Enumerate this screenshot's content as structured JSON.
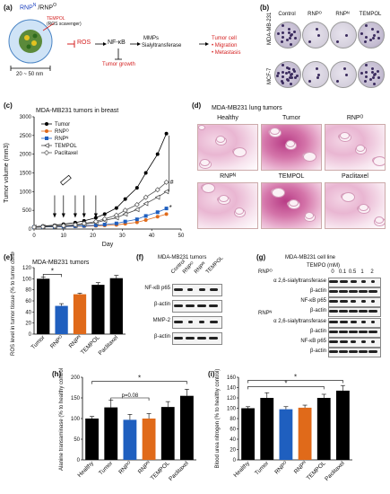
{
  "panels": {
    "a": "(a)",
    "b": "(b)",
    "c": "(c)",
    "d": "(d)",
    "e": "(e)",
    "f": "(f)",
    "g": "(g)",
    "h": "(h)",
    "i": "(i)"
  },
  "a": {
    "title_main": "RNP",
    "title_sup1": "N",
    "title_sep": " /RNP",
    "title_sup2": "O",
    "tempo": "TEMPOL",
    "tempo_note": "(ROS scavenger)",
    "size": "20 ~ 50 nm",
    "ros": "ROS",
    "nfkb": "NF-κB",
    "mmps": "MMPs",
    "sialyl": "Sialyltransferase",
    "tumor_cell": "Tumor cell",
    "migration": "• Migration",
    "metastasis": "• Metastasis",
    "tumor_growth": "Tumor growth"
  },
  "b": {
    "cols": [
      "Control",
      "RNPᴼ",
      "RNPᴺ",
      "TEMPOL"
    ],
    "rows": [
      "MDA-MB-231",
      "MCF-7"
    ]
  },
  "c": {
    "title": "MDA-MB231 tumors in breast",
    "legend": [
      "Tumor",
      "RNPᴼ",
      "RNPᴺ",
      "TEMPOL",
      "Paclitaxel"
    ],
    "star": "*",
    "hash": "#"
  },
  "d": {
    "title": "MDA-MB231 lung tumors",
    "labels": [
      "Healthy",
      "Tumor",
      "RNPᴼ",
      "RNPᴺ",
      "TEMPOL",
      "Paclitaxel"
    ]
  },
  "e": {
    "title": "MDA-MB231 tumors",
    "star": "*"
  },
  "f": {
    "title": "MDA-MB231 tumors",
    "cols": [
      "Control",
      "RNPᴼ",
      "RNPᴺ",
      "TEMPOL"
    ],
    "rows": [
      "NF-κB p65",
      "β-actin",
      "MMP-2",
      "β-actin"
    ]
  },
  "g": {
    "title": "MDA-MB231 cell line",
    "tempo_label": "TEMPO (mM)",
    "conc": [
      "0",
      "0.1",
      "0.5",
      "1",
      "2"
    ],
    "rnpo": "RNPᴼ",
    "rnpn": "RNPᴺ",
    "rows1": [
      "α 2,6-sialyltransferase",
      "β-actin",
      "NF-κB p65",
      "β-actin"
    ],
    "rows2": [
      "α 2,6-sialyltransferase",
      "β-actin",
      "NF-κB p65",
      "β-actin"
    ]
  },
  "h": {
    "star": "*",
    "p": "p=0.08"
  },
  "i": {
    "star1": "*",
    "star2": "*"
  },
  "chart_data": [
    {
      "type": "line",
      "panel": "c",
      "title": "MDA-MB231 tumors in breast",
      "xlabel": "Day",
      "ylabel": "Tumor volume (mm3)",
      "xlim": [
        0,
        50
      ],
      "ylim": [
        0,
        3000
      ],
      "xticks": [
        0,
        10,
        20,
        30,
        40,
        50
      ],
      "yticks": [
        0,
        500,
        1000,
        1500,
        2000,
        2500,
        3000
      ],
      "grid": false,
      "legend_position": "top-left",
      "x": [
        0,
        3,
        7,
        10,
        14,
        17,
        21,
        24,
        28,
        31,
        35,
        38,
        42,
        45
      ],
      "series": [
        {
          "name": "Tumor",
          "color": "#000000",
          "marker": "circle-filled",
          "values": [
            60,
            80,
            100,
            130,
            170,
            220,
            300,
            400,
            560,
            800,
            1100,
            1500,
            2000,
            2550
          ]
        },
        {
          "name": "RNPᴼ",
          "color": "#e06a1a",
          "marker": "circle-filled",
          "values": [
            50,
            55,
            60,
            65,
            70,
            75,
            85,
            95,
            110,
            140,
            180,
            240,
            330,
            400
          ]
        },
        {
          "name": "RNPᴺ",
          "color": "#1f5fbf",
          "marker": "square-filled",
          "values": [
            50,
            55,
            60,
            65,
            75,
            85,
            100,
            120,
            150,
            200,
            260,
            350,
            450,
            550
          ]
        },
        {
          "name": "TEMPOL",
          "color": "#444444",
          "marker": "triangle-open",
          "values": [
            50,
            60,
            70,
            80,
            100,
            130,
            170,
            230,
            300,
            400,
            520,
            680,
            850,
            1000
          ]
        },
        {
          "name": "Paclitaxel",
          "color": "#555555",
          "marker": "diamond-open",
          "values": [
            50,
            60,
            75,
            90,
            115,
            150,
            200,
            270,
            370,
            500,
            650,
            850,
            1050,
            1250
          ]
        }
      ],
      "injection_days": [
        7,
        10,
        14,
        17,
        21
      ]
    },
    {
      "type": "bar",
      "panel": "e",
      "title": "MDA-MB231 tumors",
      "ylabel": "ROS level in tumor tissue (% to tumor control)",
      "ylim": [
        0,
        120
      ],
      "yticks": [
        0,
        20,
        40,
        60,
        80,
        100,
        120
      ],
      "categories": [
        "Tumor",
        "RNPᴼ",
        "RNPᴺ",
        "TEMPOL",
        "Paclitaxel"
      ],
      "values": [
        100,
        51,
        72,
        89,
        101
      ],
      "errors": [
        3,
        4,
        2,
        4,
        5
      ],
      "colors": [
        "#000000",
        "#1f5fbf",
        "#e06a1a",
        "#000000",
        "#000000"
      ]
    },
    {
      "type": "bar",
      "panel": "h",
      "ylabel": "Alanine transaminase (% to healthy control)",
      "ylim": [
        0,
        200
      ],
      "yticks": [
        0,
        50,
        100,
        150,
        200
      ],
      "categories": [
        "Healthy",
        "Tumor",
        "RNPᴼ",
        "RNPᴺ",
        "TEMPOL",
        "Paclitaxel"
      ],
      "values": [
        100,
        127,
        97,
        100,
        128,
        155
      ],
      "errors": [
        5,
        17,
        13,
        12,
        13,
        16
      ],
      "colors": [
        "#000000",
        "#000000",
        "#1f5fbf",
        "#e06a1a",
        "#000000",
        "#000000"
      ]
    },
    {
      "type": "bar",
      "panel": "i",
      "ylabel": "Blood urea nitrogen (% to healthy control)",
      "ylim": [
        0,
        160
      ],
      "yticks": [
        0,
        20,
        40,
        60,
        80,
        100,
        120,
        140,
        160
      ],
      "categories": [
        "Healthy",
        "Tumor",
        "RNPᴼ",
        "RNPᴺ",
        "TEMPOL",
        "Paclitaxel"
      ],
      "values": [
        100,
        120,
        98,
        101,
        120,
        134
      ],
      "errors": [
        3,
        10,
        5,
        5,
        7,
        10
      ],
      "colors": [
        "#000000",
        "#000000",
        "#1f5fbf",
        "#e06a1a",
        "#000000",
        "#000000"
      ]
    }
  ]
}
